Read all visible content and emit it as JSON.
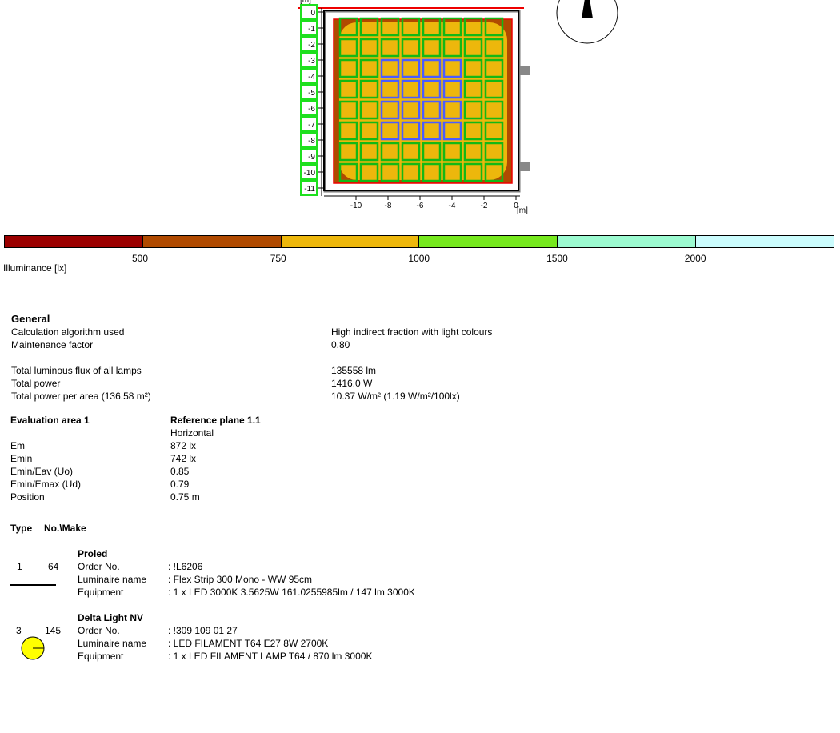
{
  "plan": {
    "unit": "[m]",
    "x_ticks": [
      "-10",
      "-8",
      "-6",
      "-4",
      "-2",
      "0"
    ],
    "y_ticks": [
      "0",
      "-1",
      "-2",
      "-3",
      "-4",
      "-5",
      "-6",
      "-7",
      "-8",
      "-9",
      "-10",
      "-11"
    ]
  },
  "legend": {
    "title": "Illuminance [lx]",
    "colors": [
      "#9b0000",
      "#b04a00",
      "#edb70c",
      "#76e81e",
      "#9cfad0",
      "#cbfcfd"
    ],
    "labels": [
      "500",
      "750",
      "1000",
      "1500",
      "2000"
    ]
  },
  "general": {
    "title": "General",
    "rows": [
      {
        "label": "Calculation algorithm used",
        "value": "High indirect fraction with light colours"
      },
      {
        "label": "Maintenance factor",
        "value": "0.80"
      },
      {
        "label": "Total luminous flux of all lamps",
        "value": "135558 lm"
      },
      {
        "label": "Total power",
        "value": "1416.0 W"
      },
      {
        "label": "Total power per area (136.58 m²)",
        "value": "10.37 W/m² (1.19 W/m²/100lx)"
      }
    ]
  },
  "evaluation": {
    "title": "Evaluation area 1",
    "plane": "Reference plane 1.1",
    "orientation": "Horizontal",
    "rows": [
      {
        "label": "Em",
        "value": "872 lx"
      },
      {
        "label": "Emin",
        "value": "742 lx"
      },
      {
        "label": "Emin/Eav (Uo)",
        "value": "0.85"
      },
      {
        "label": "Emin/Emax (Ud)",
        "value": "0.79"
      },
      {
        "label": "Position",
        "value": "0.75 m"
      }
    ]
  },
  "luminaires": {
    "header_type": "Type",
    "header_no": "No.\\Make",
    "items": [
      {
        "type": "1",
        "count": "64",
        "make": "Proled",
        "order": ": !L6206",
        "name": ": Flex Strip 300 Mono - WW 95cm",
        "equipment": ": 1 x LED 3000K 3.5625W 161.0255985lm  / 147 lm 3000K",
        "labels": [
          "Order No.",
          "Luminaire name",
          "Equipment"
        ]
      },
      {
        "type": "3",
        "count": "145",
        "make": "Delta Light NV",
        "order": ": !309 109 01 27",
        "name": ": LED FILAMENT T64 E27 8W 2700K",
        "equipment": ": 1 x LED FILAMENT LAMP T64  / 870 lm 3000K",
        "labels": [
          "Order No.",
          "Luminaire name",
          "Equipment"
        ]
      }
    ]
  }
}
